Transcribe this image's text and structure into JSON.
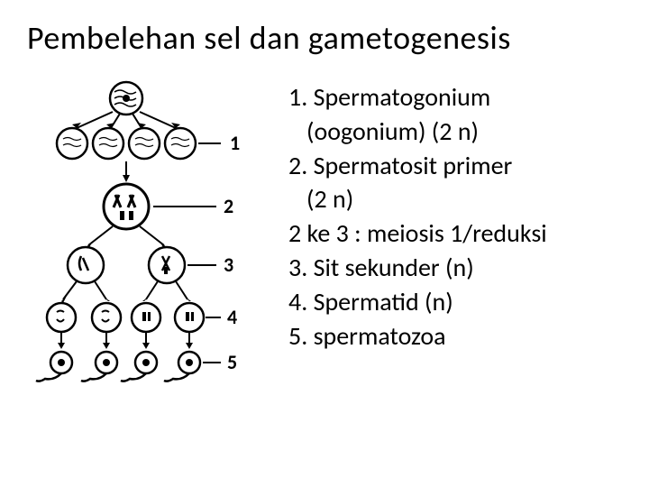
{
  "title": "Pembelehan sel dan gametogenesis",
  "diagram": {
    "labels": [
      "1",
      "2",
      "3",
      "4",
      "5"
    ],
    "stroke": "#000000",
    "fill": "#ffffff"
  },
  "list": {
    "items": [
      {
        "text": "1. Spermatogonium",
        "indent": false
      },
      {
        "text": "(oogonium) (2 n)",
        "indent": true
      },
      {
        "text": "2. Spermatosit primer",
        "indent": false
      },
      {
        "text": "(2 n)",
        "indent": true
      },
      {
        "text": "2 ke 3 : meiosis 1/reduksi",
        "indent": false
      },
      {
        "text": "3. Sit sekunder (n)",
        "indent": false
      },
      {
        "text": "4. Spermatid (n)",
        "indent": false
      },
      {
        "text": "5. spermatozoa",
        "indent": false
      }
    ],
    "fontsize": 28,
    "color": "#000000"
  }
}
